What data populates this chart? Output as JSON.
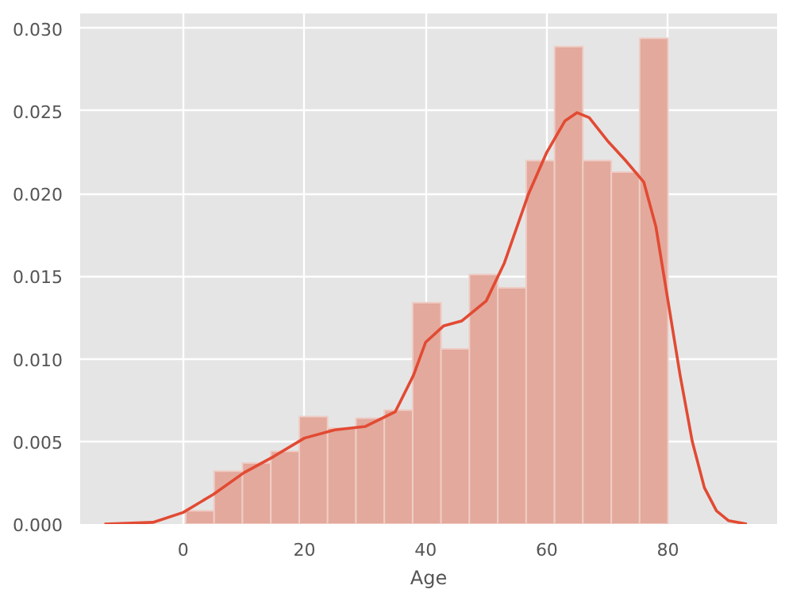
{
  "chart_data": {
    "type": "histogram",
    "xlabel": "Age",
    "xlim": [
      -17,
      98
    ],
    "ylim": [
      0,
      0.0309
    ],
    "xticks": [
      0,
      20,
      40,
      60,
      80
    ],
    "yticks": [
      {
        "value": 0,
        "label": "0.000"
      },
      {
        "value": 0.005,
        "label": "0.005"
      },
      {
        "value": 0.01,
        "label": "0.010"
      },
      {
        "value": 0.015,
        "label": "0.015"
      },
      {
        "value": 0.02,
        "label": "0.020"
      },
      {
        "value": 0.025,
        "label": "0.025"
      },
      {
        "value": 0.03,
        "label": "0.030"
      }
    ],
    "grid": true,
    "series": [
      {
        "color": "#e3a99c",
        "bins": [
          0.42,
          5.1,
          9.78,
          14.46,
          19.15,
          23.83,
          28.51,
          33.19,
          37.87,
          42.55,
          47.23,
          51.91,
          56.6,
          61.28,
          65.96,
          70.64,
          75.32,
          80.0
        ],
        "values": [
          0.0008,
          0.0032,
          0.0037,
          0.0044,
          0.0065,
          0.0058,
          0.0064,
          0.0069,
          0.0134,
          0.0106,
          0.0151,
          0.0143,
          0.022,
          0.0289,
          0.022,
          0.0213,
          0.0294
        ]
      },
      {
        "type": "line",
        "color": "#e24a33",
        "x": [
          -13,
          -5,
          0,
          5,
          10,
          15,
          20,
          25,
          30,
          35,
          38,
          40,
          43,
          46,
          50,
          53,
          57,
          60,
          63,
          65,
          67,
          70,
          73,
          76,
          78,
          80,
          82,
          84,
          86,
          88,
          90,
          93
        ],
        "values": [
          0,
          0.0001,
          0.0007,
          0.0018,
          0.0031,
          0.0041,
          0.0052,
          0.0057,
          0.0059,
          0.0068,
          0.009,
          0.011,
          0.012,
          0.0123,
          0.0135,
          0.0158,
          0.02,
          0.0225,
          0.0244,
          0.0249,
          0.0246,
          0.0232,
          0.022,
          0.0207,
          0.018,
          0.0135,
          0.009,
          0.005,
          0.0022,
          0.0008,
          0.0002,
          0
        ]
      }
    ]
  }
}
